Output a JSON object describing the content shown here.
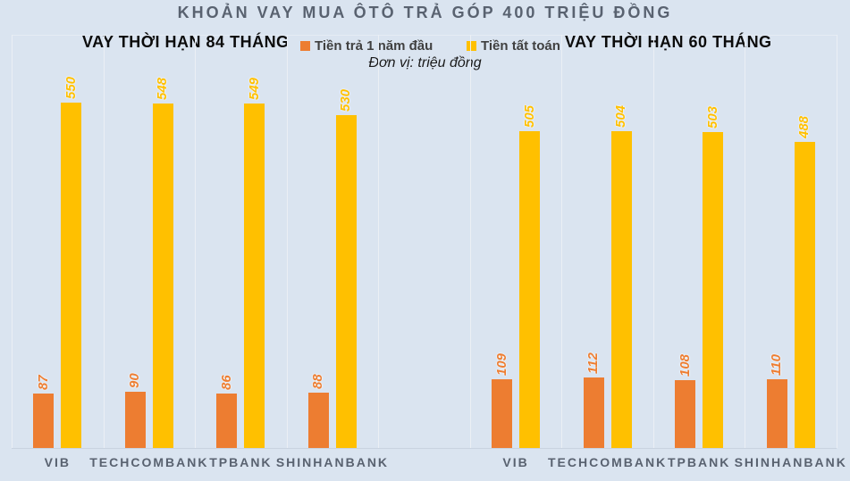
{
  "title": "KHOẢN VAY MUA ÔTÔ TRẢ GÓP 400 TRIỆU ĐỒNG",
  "unit_label": "Đơn vị: triệu đồng",
  "headers": {
    "left": "VAY THỜI HẠN 84 THÁNG",
    "right": "VAY THỜI HẠN 60 THÁNG"
  },
  "legend": {
    "items": [
      {
        "label": "Tiền trả 1 năm đầu",
        "color": "#ED7D31"
      },
      {
        "label": "Tiền tất toán",
        "color": "#FFC000"
      }
    ]
  },
  "colors": {
    "background": "#dae4f0",
    "bar_orange": "#ED7D31",
    "bar_gold": "#FFC000",
    "title_text": "#596270",
    "category_text": "#596270"
  },
  "chart_data": {
    "type": "bar",
    "title": "KHOẢN VAY MUA ÔTÔ TRẢ GÓP 400 TRIỆU ĐỒNG",
    "unit": "triệu đồng",
    "ylim": [
      0,
      658
    ],
    "grid": "vertical-only",
    "legend_position": "top-center",
    "categories": [
      "VIB",
      "TECHCOMBANK",
      "TPBANK",
      "SHINHANBANK"
    ],
    "groups": [
      {
        "label": "VAY THỜI HẠN 84 THÁNG",
        "series": [
          {
            "name": "Tiền trả 1 năm đầu",
            "color": "#ED7D31",
            "values": [
              87,
              90,
              86,
              88
            ]
          },
          {
            "name": "Tiền tất toán",
            "color": "#FFC000",
            "values": [
              550,
              548,
              549,
              530
            ]
          }
        ]
      },
      {
        "label": "VAY THỜI HẠN 60 THÁNG",
        "series": [
          {
            "name": "Tiền trả 1 năm đầu",
            "color": "#ED7D31",
            "values": [
              109,
              112,
              108,
              110
            ]
          },
          {
            "name": "Tiền tất toán",
            "color": "#FFC000",
            "values": [
              505,
              504,
              503,
              488
            ]
          }
        ]
      }
    ]
  }
}
